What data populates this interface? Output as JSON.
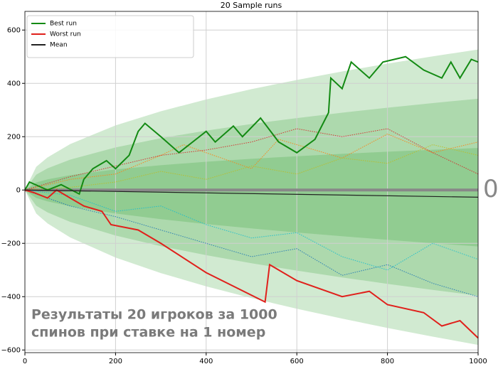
{
  "chart_data": {
    "type": "line",
    "title": "20 Sample runs",
    "xlim": [
      0,
      1000
    ],
    "ylim": [
      -610,
      670
    ],
    "xticks": [
      0,
      200,
      400,
      600,
      800,
      1000
    ],
    "yticks": [
      {
        "value": -600,
        "label": "−600"
      },
      {
        "value": -400,
        "label": "−400"
      },
      {
        "value": -200,
        "label": "−200"
      },
      0,
      200,
      400,
      600
    ],
    "grid": true,
    "legend": "upper left",
    "hline": 0,
    "annotation": [
      "Результаты 20 игроков за 1000",
      "спинов при ставке на 1 номер"
    ],
    "band_x": [
      0,
      25,
      50,
      100,
      200,
      300,
      400,
      500,
      600,
      700,
      800,
      900,
      1000
    ],
    "band_color": "#2ca02c",
    "bands": [
      {
        "upper": [
          0,
          86.9,
          122.5,
          172.5,
          242.4,
          295.5,
          339.6,
          378.3,
          412.8,
          444.6,
          474,
          501.3,
          527.1
        ],
        "lower": [
          0,
          -88.3,
          -125.3,
          -177.9,
          -253.2,
          -311.7,
          -361.2,
          -405.3,
          -445.2,
          -482.4,
          -517.2,
          -549.9,
          -581.1
        ]
      },
      {
        "upper": [
          0,
          57.7,
          81.2,
          114.1,
          159.8,
          194.3,
          222.8,
          247.7,
          269.8,
          290.1,
          308.8,
          326.1,
          342.4
        ],
        "lower": [
          0,
          -59.1,
          -84,
          -119.5,
          -170.6,
          -210.5,
          -244.4,
          -274.7,
          -302.2,
          -327.9,
          -352,
          -374.7,
          -396.4
        ]
      },
      {
        "upper": [
          0,
          28.5,
          39.9,
          55.7,
          77.2,
          93.1,
          106,
          117.1,
          126.8,
          135.6,
          143.6,
          150.9,
          157.7
        ],
        "lower": [
          0,
          -29.9,
          -42.7,
          -61.1,
          -88,
          -109.3,
          -127.6,
          -144.1,
          -159.2,
          -173.4,
          -186.8,
          -199.5,
          -211.7
        ]
      }
    ],
    "series": [
      {
        "color": "#ff7f0e",
        "style": "dotted",
        "x": [
          0,
          100,
          200,
          300,
          350,
          500,
          560,
          700,
          800,
          900,
          1000
        ],
        "values": [
          0,
          40,
          60,
          130,
          170,
          80,
          190,
          120,
          210,
          140,
          180
        ]
      },
      {
        "color": "#1f77b4",
        "style": "dotted",
        "x": [
          0,
          100,
          200,
          300,
          400,
          500,
          600,
          700,
          800,
          900,
          1000
        ],
        "values": [
          0,
          -60,
          -100,
          -150,
          -200,
          -250,
          -220,
          -320,
          -280,
          -350,
          -400
        ]
      },
      {
        "color": "#d62728",
        "style": "dotted",
        "x": [
          0,
          100,
          200,
          300,
          400,
          500,
          600,
          700,
          800,
          900,
          1000
        ],
        "values": [
          0,
          50,
          90,
          130,
          150,
          180,
          230,
          200,
          230,
          140,
          60
        ]
      },
      {
        "color": "#17becf",
        "style": "dotted",
        "x": [
          0,
          100,
          200,
          300,
          400,
          500,
          600,
          700,
          800,
          900,
          1000
        ],
        "values": [
          0,
          -20,
          -80,
          -60,
          -130,
          -180,
          -160,
          -250,
          -300,
          -200,
          -260
        ]
      },
      {
        "color": "#bcbd22",
        "style": "dotted",
        "x": [
          0,
          100,
          200,
          300,
          400,
          500,
          600,
          700,
          800,
          900,
          1000
        ],
        "values": [
          0,
          10,
          30,
          70,
          40,
          90,
          60,
          120,
          100,
          170,
          130
        ]
      },
      {
        "name": "Best run",
        "color": "#138a13",
        "x": [
          0,
          10,
          50,
          80,
          120,
          130,
          150,
          180,
          200,
          230,
          250,
          265,
          300,
          340,
          400,
          420,
          460,
          480,
          520,
          560,
          600,
          640,
          670,
          675,
          700,
          720,
          760,
          790,
          840,
          880,
          920,
          940,
          960,
          985,
          1000
        ],
        "values": [
          0,
          30,
          0,
          20,
          -15,
          40,
          80,
          110,
          80,
          130,
          220,
          250,
          200,
          140,
          220,
          180,
          240,
          200,
          270,
          180,
          140,
          190,
          290,
          420,
          380,
          480,
          420,
          480,
          500,
          450,
          420,
          480,
          420,
          490,
          480
        ]
      },
      {
        "name": "Worst run",
        "color": "#e0201b",
        "x": [
          0,
          20,
          50,
          70,
          100,
          130,
          170,
          190,
          250,
          300,
          400,
          530,
          540,
          600,
          700,
          760,
          800,
          880,
          920,
          960,
          1000
        ],
        "values": [
          0,
          -10,
          -30,
          0,
          -30,
          -60,
          -80,
          -130,
          -150,
          -200,
          -310,
          -420,
          -280,
          -340,
          -400,
          -380,
          -430,
          -460,
          -510,
          -490,
          -555
        ]
      },
      {
        "name": "Mean",
        "color": "#222222",
        "x": [
          0,
          1000
        ],
        "values": [
          0,
          -27
        ]
      }
    ]
  }
}
